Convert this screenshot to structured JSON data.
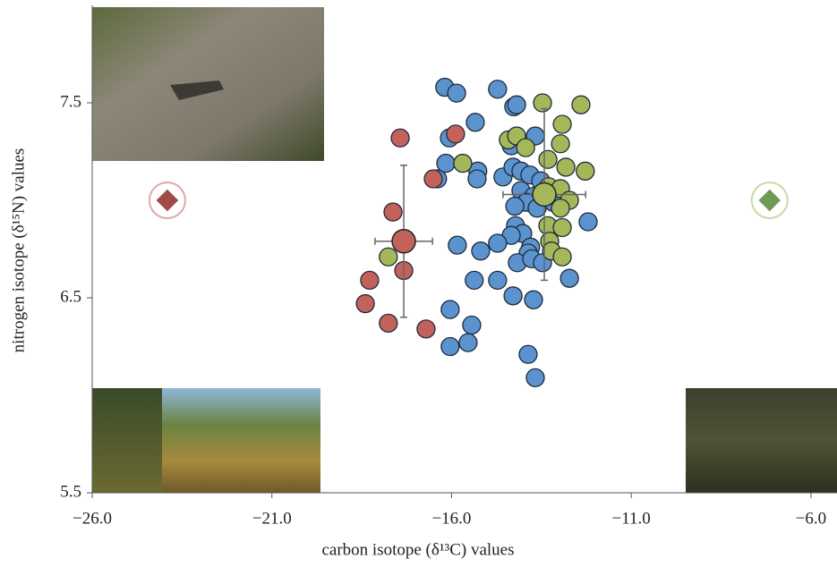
{
  "chart_data": {
    "type": "scatter",
    "xlabel": "carbon isotope (δ¹³C) values",
    "ylabel": "nitrogen isotope (δ¹⁵N) values",
    "xlim": [
      -26,
      -5.3
    ],
    "ylim": [
      5.5,
      8.0
    ],
    "xticks": [
      {
        "value": -26,
        "label": "−26.0"
      },
      {
        "value": -21,
        "label": "−21.0"
      },
      {
        "value": -16,
        "label": "−16.0"
      },
      {
        "value": -11,
        "label": "−11.0"
      },
      {
        "value": -6,
        "label": "−6.0"
      }
    ],
    "yticks": [
      5.5,
      6.5,
      7.5
    ],
    "series": [
      {
        "color": "#5b93cf",
        "x": [
          -16.19,
          -15.86,
          -14.72,
          -14.27,
          -14.19,
          -15.34,
          -16.06,
          -13.67,
          -14.34,
          -16.39,
          -16.16,
          -15.27,
          -15.29,
          -14.57,
          -14.29,
          -14.07,
          -13.82,
          -13.52,
          -14.07,
          -13.72,
          -13.92,
          -14.24,
          -13.62,
          -13.17,
          -12.2,
          -14.22,
          -14.02,
          -14.34,
          -14.72,
          -15.19,
          -15.84,
          -13.8,
          -13.87,
          -14.17,
          -13.77,
          -13.47,
          -15.37,
          -14.72,
          -12.72,
          -14.29,
          -13.72,
          -16.04,
          -15.44,
          -15.54,
          -16.04,
          -13.87,
          -13.67
        ],
        "values": [
          7.58,
          7.55,
          7.57,
          7.48,
          7.49,
          7.4,
          7.32,
          7.33,
          7.28,
          7.11,
          7.19,
          7.15,
          7.11,
          7.12,
          7.17,
          7.15,
          7.13,
          7.1,
          7.05,
          7.02,
          6.99,
          6.97,
          6.96,
          6.99,
          6.89,
          6.87,
          6.83,
          6.82,
          6.78,
          6.74,
          6.77,
          6.76,
          6.73,
          6.68,
          6.7,
          6.68,
          6.59,
          6.59,
          6.6,
          6.51,
          6.49,
          6.44,
          6.36,
          6.27,
          6.25,
          6.21,
          6.09
        ]
      },
      {
        "color": "#c2625b",
        "x": [
          -17.43,
          -15.89,
          -16.51,
          -17.63,
          -17.33,
          -18.28,
          -18.4,
          -17.76,
          -16.71
        ],
        "values": [
          7.32,
          7.34,
          7.11,
          6.94,
          6.64,
          6.59,
          6.47,
          6.37,
          6.34
        ]
      },
      {
        "color": "#a4b85a",
        "x": [
          -13.47,
          -12.4,
          -12.92,
          -14.42,
          -14.19,
          -13.94,
          -12.97,
          -15.69,
          -13.32,
          -12.82,
          -12.28,
          -13.3,
          -12.97,
          -12.72,
          -12.97,
          -13.32,
          -12.92,
          -13.27,
          -13.22,
          -12.92,
          -17.76
        ],
        "values": [
          7.5,
          7.49,
          7.39,
          7.31,
          7.33,
          7.27,
          7.29,
          7.19,
          7.21,
          7.17,
          7.15,
          7.07,
          7.06,
          7.0,
          6.96,
          6.87,
          6.86,
          6.79,
          6.74,
          6.71,
          6.71
        ]
      }
    ],
    "means": [
      {
        "color": "#c2625b",
        "x": [
          -17.33
        ],
        "values": [
          6.79
        ],
        "xerr": [
          0.8
        ],
        "yerr": [
          0.39
        ]
      },
      {
        "color": "#a4b85a",
        "x": [
          -13.42
        ],
        "values": [
          7.03
        ],
        "xerr": [
          1.15
        ],
        "yerr": [
          0.44
        ]
      }
    ],
    "sources": [
      {
        "color": "#a04a45",
        "ring": "#e0a9a4",
        "x": [
          -23.91
        ],
        "values": [
          7.0
        ]
      },
      {
        "color": "#6f9a52",
        "ring": "#cbd9a6",
        "x": [
          -7.15
        ],
        "values": [
          7.0
        ]
      }
    ]
  }
}
